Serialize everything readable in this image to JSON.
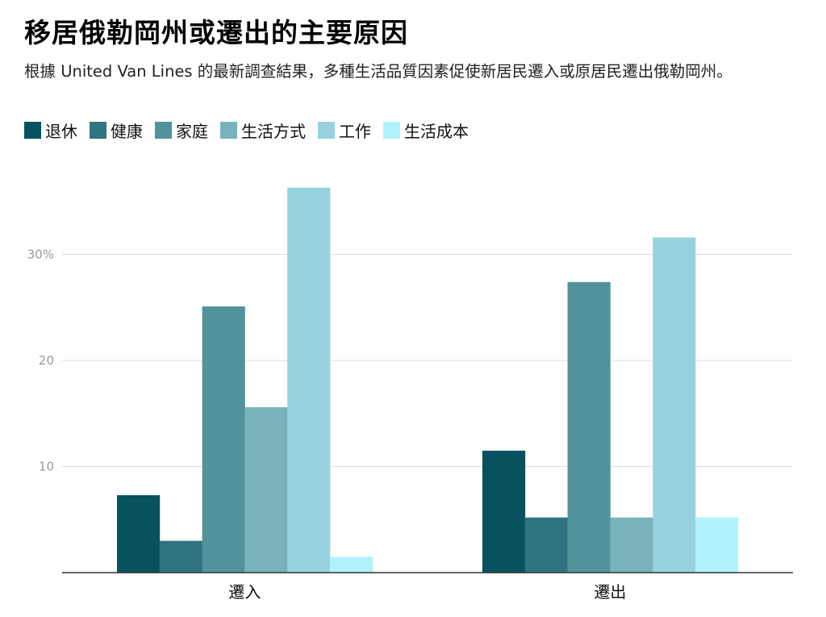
{
  "title": "移居俄勒岡州或遷出的主要原因",
  "subtitle": "根據 United Van Lines 的最新調查結果，多種生活品質因素促使新居民遷入或原居民遷出俄勒岡州。",
  "colors": {
    "退休": "#07525e",
    "健康": "#2f7480",
    "家庭": "#52939b",
    "生活方式": "#78b3bc",
    "工作": "#97d3df",
    "生活成本": "#b0f2f9",
    "grid": "#dddddd",
    "axis": "#333333"
  },
  "chart_data": {
    "type": "bar",
    "categories": [
      "遷入",
      "遷出"
    ],
    "series": [
      {
        "name": "退休",
        "values": [
          7.3,
          11.5
        ]
      },
      {
        "name": "健康",
        "values": [
          3.0,
          5.2
        ]
      },
      {
        "name": "家庭",
        "values": [
          25.1,
          27.4
        ]
      },
      {
        "name": "生活方式",
        "values": [
          15.6,
          5.2
        ]
      },
      {
        "name": "工作",
        "values": [
          36.3,
          31.6
        ]
      },
      {
        "name": "生活成本",
        "values": [
          1.5,
          5.2
        ]
      }
    ],
    "yticks": [
      {
        "value": 10,
        "label": "10"
      },
      {
        "value": 20,
        "label": "20"
      },
      {
        "value": 30,
        "label": "30%"
      }
    ],
    "ylim": [
      0,
      40
    ],
    "grid": true,
    "legend_position": "top-left"
  }
}
